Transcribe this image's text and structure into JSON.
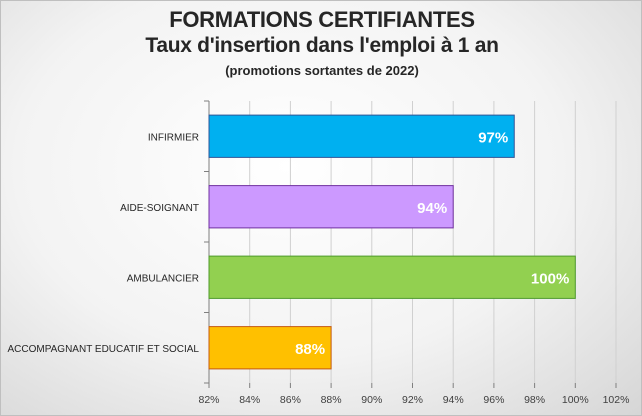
{
  "chart_data": {
    "type": "bar",
    "orientation": "horizontal",
    "title": "FORMATIONS CERTIFIANTES",
    "subtitle": "Taux d'insertion dans l'emploi à 1 an",
    "note": "(promotions sortantes de 2022)",
    "categories": [
      "INFIRMIER",
      "AIDE-SOIGNANT",
      "AMBULANCIER",
      "ACCOMPAGNANT EDUCATIF ET SOCIAL"
    ],
    "values": [
      97,
      94,
      100,
      88
    ],
    "data_labels": [
      "97%",
      "94%",
      "100%",
      "88%"
    ],
    "colors": [
      "#00b0f0",
      "#cc99ff",
      "#92d050",
      "#ffc000"
    ],
    "border_colors": [
      "#2f5597",
      "#7030a0",
      "#4e9a2a",
      "#c55a11"
    ],
    "xlim": [
      82,
      102
    ],
    "x_ticks": [
      82,
      84,
      86,
      88,
      90,
      92,
      94,
      96,
      98,
      100,
      102
    ],
    "x_tick_labels": [
      "82%",
      "84%",
      "86%",
      "88%",
      "90%",
      "92%",
      "94%",
      "96%",
      "98%",
      "100%",
      "102%"
    ],
    "grid": true,
    "legend": "none"
  }
}
